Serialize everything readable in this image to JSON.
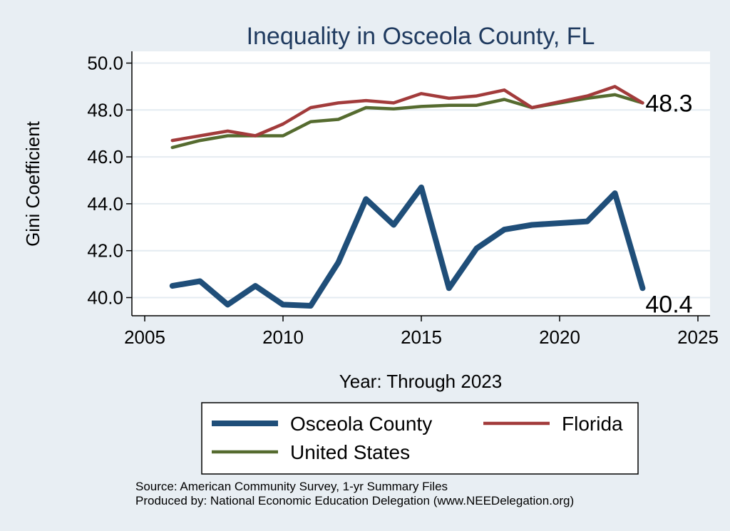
{
  "chart_data": {
    "type": "line",
    "title": "Inequality in Osceola County, FL",
    "xlabel": "Year: Through 2023",
    "ylabel": "Gini Coefficient",
    "xlim": [
      2005,
      2025
    ],
    "ylim": [
      39.1,
      50.4
    ],
    "x_ticks": [
      "2005",
      "2010",
      "2015",
      "2020",
      "2025"
    ],
    "y_ticks": [
      "40.0",
      "42.0",
      "44.0",
      "46.0",
      "48.0",
      "50.0"
    ],
    "grid": true,
    "legend_position": "bottom",
    "series": [
      {
        "name": "Osceola County",
        "color": "#1f4e79",
        "x": [
          2006,
          2007,
          2008,
          2009,
          2010,
          2011,
          2012,
          2013,
          2014,
          2015,
          2016,
          2017,
          2018,
          2019,
          2021,
          2022,
          2023
        ],
        "y": [
          40.5,
          40.7,
          39.7,
          40.5,
          39.7,
          39.65,
          41.5,
          44.2,
          43.1,
          44.7,
          40.4,
          42.1,
          42.9,
          43.1,
          43.25,
          44.45,
          40.4
        ],
        "end_label": "40.4"
      },
      {
        "name": "Florida",
        "color": "#a23b3b",
        "x": [
          2006,
          2007,
          2008,
          2009,
          2010,
          2011,
          2012,
          2013,
          2014,
          2015,
          2016,
          2017,
          2018,
          2019,
          2021,
          2022,
          2023
        ],
        "y": [
          46.7,
          46.9,
          47.1,
          46.9,
          47.4,
          48.1,
          48.3,
          48.4,
          48.3,
          48.7,
          48.5,
          48.6,
          48.85,
          48.1,
          48.6,
          49.0,
          48.3
        ],
        "end_label": "48.3"
      },
      {
        "name": "United States",
        "color": "#556b2f",
        "x": [
          2006,
          2007,
          2008,
          2009,
          2010,
          2011,
          2012,
          2013,
          2014,
          2015,
          2016,
          2017,
          2018,
          2019,
          2021,
          2022,
          2023
        ],
        "y": [
          46.4,
          46.7,
          46.9,
          46.9,
          46.9,
          47.5,
          47.6,
          48.1,
          48.05,
          48.15,
          48.2,
          48.2,
          48.45,
          48.1,
          48.5,
          48.65,
          48.3
        ]
      }
    ],
    "notes": [
      "Source: American Community Survey, 1-yr Summary Files",
      "Produced by: National Economic Education Delegation (www.NEEDelegation.org)"
    ]
  }
}
